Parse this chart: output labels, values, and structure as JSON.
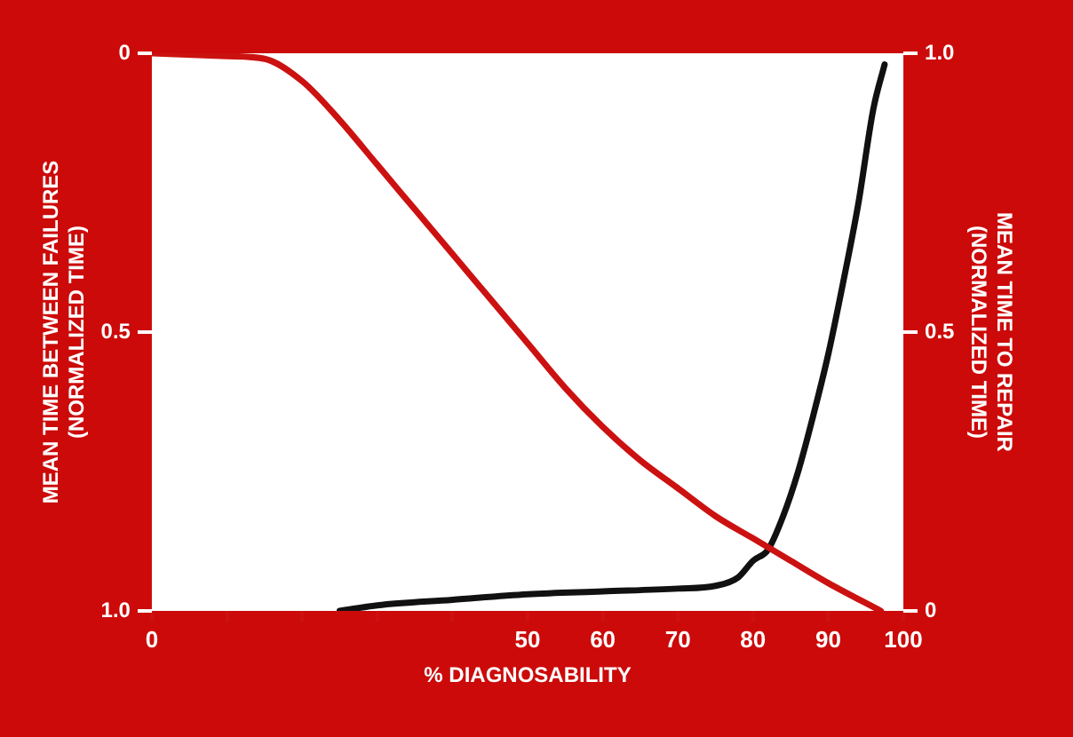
{
  "chart_data": {
    "type": "line",
    "xlabel": "% DIAGNOSABILITY",
    "ylabel": "MEAN TIME BETWEEN FAILURES\n(NORMALIZED TIME)",
    "y2label": "MEAN TIME TO REPAIR\n(NORMALIZED TIME)",
    "xlim": [
      0,
      100
    ],
    "xticks": [
      0,
      {
        "value": 10,
        "label": null
      },
      {
        "value": 20,
        "label": null
      },
      {
        "value": 30,
        "label": null
      },
      {
        "value": 40,
        "label": null
      },
      50,
      60,
      70,
      80,
      90,
      100
    ],
    "ylim": [
      1,
      0
    ],
    "yticks": [
      0,
      0.5,
      {
        "value": 1,
        "label": "1.0"
      }
    ],
    "y2lim": [
      0,
      1
    ],
    "y2ticks": [
      0,
      0.5,
      {
        "value": 1,
        "label": "1.0"
      }
    ],
    "grid": false,
    "legend": false,
    "marker": "none",
    "line_style": "solid",
    "series": [
      {
        "color": "#cc1111",
        "x": [
          0,
          10,
          15,
          20,
          25,
          30,
          35,
          40,
          45,
          50,
          55,
          60,
          65,
          70,
          75,
          80,
          85,
          90,
          97
        ],
        "values": [
          0,
          0.005,
          0.01,
          0.05,
          0.12,
          0.2,
          0.28,
          0.36,
          0.44,
          0.52,
          0.6,
          0.67,
          0.73,
          0.78,
          0.83,
          0.87,
          0.91,
          0.95,
          1.0
        ]
      },
      {
        "color": "#111111",
        "axis": "y2",
        "x": [
          25,
          30,
          40,
          50,
          60,
          70,
          75,
          78,
          80,
          82,
          84,
          86,
          88,
          90,
          92,
          94,
          96,
          97.5
        ],
        "values": [
          0,
          0.01,
          0.02,
          0.03,
          0.035,
          0.04,
          0.045,
          0.06,
          0.09,
          0.11,
          0.17,
          0.25,
          0.35,
          0.46,
          0.59,
          0.73,
          0.9,
          0.98
        ]
      }
    ]
  }
}
